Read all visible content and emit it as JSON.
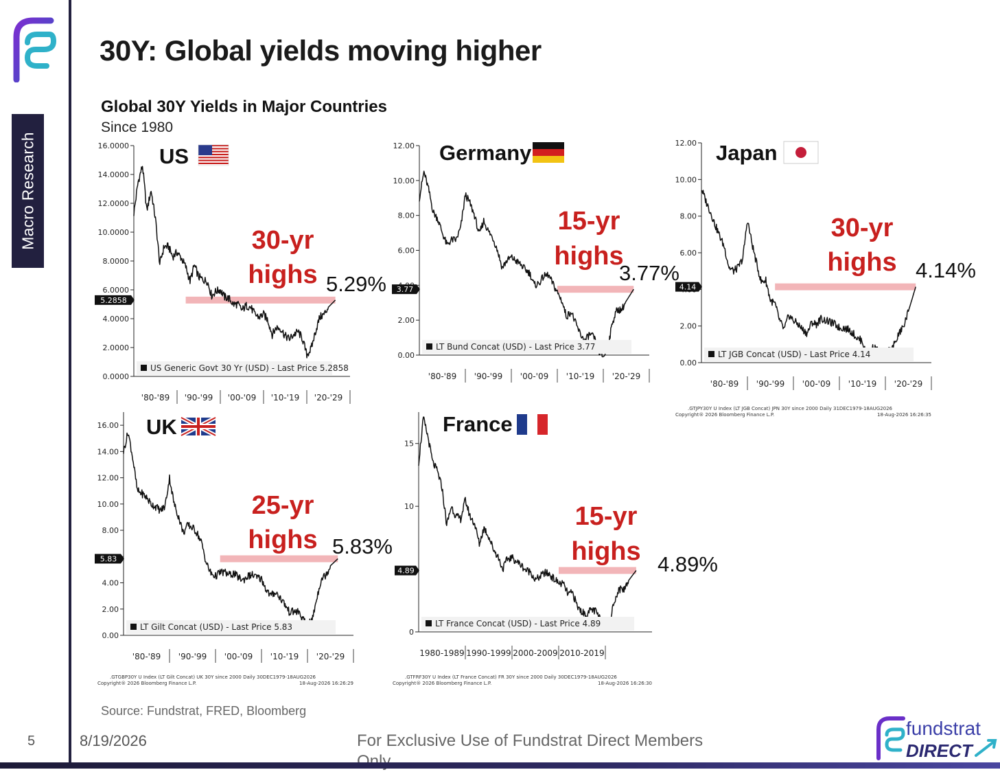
{
  "slide": {
    "title": "30Y: Global yields moving higher",
    "side_tag": "Macro Research",
    "page_number": "5",
    "date": "8/19/2026",
    "footer_notice": "For Exclusive Use of Fundstrat Direct Members Only",
    "source": "Source: Fundstrat, FRED, Bloomberg",
    "brand_top": "fundstrat",
    "brand_bottom": "DIRECT",
    "chart_title": "Global 30Y Yields in Major Countries",
    "chart_subtitle": "Since 1980",
    "colors": {
      "accent_red": "#c8201e",
      "highlight_band": "#f0a8ab",
      "navy": "#22203f",
      "logo_purple": "#5a2ea6"
    }
  },
  "chart_data": [
    {
      "type": "line",
      "country": "US",
      "flag": "us-flag-icon",
      "ylim": [
        0,
        16
      ],
      "yticks": [
        "0.0000",
        "2.0000",
        "4.0000",
        "6.0000",
        "8.0000",
        "10.0000",
        "12.0000",
        "14.0000",
        "16.0000"
      ],
      "xticks": [
        "'80-'89",
        "'90-'99",
        "'00-'09",
        "'10-'19",
        "'20-'29"
      ],
      "annotation_line1": "30-yr",
      "annotation_line2": "highs",
      "highlight_level": 5.29,
      "last_value_label": "5.2858",
      "last_value_pct": "5.29%",
      "legend": "US Generic Govt 30 Yr (USD) - Last Price 5.2858",
      "footnote": [],
      "x": [
        1980,
        1981,
        1982,
        1983,
        1984,
        1985,
        1986,
        1987,
        1988,
        1989,
        1990,
        1991,
        1992,
        1993,
        1994,
        1995,
        1996,
        1997,
        1998,
        1999,
        2000,
        2001,
        2002,
        2003,
        2004,
        2005,
        2006,
        2007,
        2008,
        2009,
        2010,
        2011,
        2012,
        2013,
        2014,
        2015,
        2016,
        2017,
        2018,
        2019,
        2020,
        2021,
        2022,
        2023,
        2024,
        2025,
        2026.6
      ],
      "values": [
        11.3,
        13.5,
        14.6,
        11.5,
        12.9,
        10.9,
        7.8,
        9.0,
        9.0,
        8.3,
        8.6,
        8.2,
        7.6,
        6.6,
        7.7,
        6.9,
        6.7,
        6.6,
        5.6,
        5.9,
        6.0,
        5.5,
        5.4,
        5.0,
        5.0,
        4.6,
        4.9,
        4.8,
        4.3,
        4.1,
        4.3,
        3.9,
        2.9,
        3.4,
        3.3,
        2.8,
        2.6,
        2.9,
        3.1,
        2.6,
        1.5,
        1.9,
        3.1,
        4.1,
        4.3,
        4.8,
        5.29
      ]
    },
    {
      "type": "line",
      "country": "Germany",
      "flag": "germany-flag-icon",
      "ylim": [
        0,
        12
      ],
      "yticks": [
        "0.00",
        "2.00",
        "4.00",
        "6.00",
        "8.00",
        "10.00",
        "12.00"
      ],
      "xticks": [
        "'80-'89",
        "'90-'99",
        "'00-'09",
        "'10-'19",
        "'20-'29"
      ],
      "annotation_line1": "15-yr",
      "annotation_line2": "highs",
      "highlight_level": 3.77,
      "last_value_label": "3.77",
      "last_value_pct": "3.77%",
      "legend": "LT Bund Concat (USD) - Last Price 3.77",
      "footnote": [],
      "x": [
        1980,
        1981,
        1982,
        1983,
        1984,
        1985,
        1986,
        1987,
        1988,
        1989,
        1990,
        1991,
        1992,
        1993,
        1994,
        1995,
        1996,
        1997,
        1998,
        1999,
        2000,
        2001,
        2002,
        2003,
        2004,
        2005,
        2006,
        2007,
        2008,
        2009,
        2010,
        2011,
        2012,
        2013,
        2014,
        2015,
        2016,
        2017,
        2018,
        2019,
        2020,
        2021,
        2022,
        2023,
        2024,
        2025,
        2026.6
      ],
      "values": [
        9.0,
        10.5,
        9.5,
        8.2,
        7.8,
        7.0,
        6.3,
        6.6,
        6.6,
        7.3,
        9.2,
        8.7,
        8.0,
        6.9,
        7.7,
        7.1,
        6.7,
        6.0,
        5.0,
        5.4,
        5.6,
        5.4,
        5.2,
        4.9,
        4.7,
        4.0,
        4.1,
        4.5,
        4.6,
        4.1,
        3.6,
        3.1,
        2.2,
        2.5,
        1.8,
        1.2,
        0.8,
        1.2,
        1.0,
        0.2,
        -0.1,
        0.4,
        1.9,
        2.6,
        2.6,
        3.1,
        3.77
      ]
    },
    {
      "type": "line",
      "country": "Japan",
      "flag": "japan-flag-icon",
      "ylim": [
        0,
        12
      ],
      "yticks": [
        "0.00",
        "2.00",
        "4.00",
        "6.00",
        "8.00",
        "10.00",
        "12.00"
      ],
      "xticks": [
        "'80-'89",
        "'90-'99",
        "'00-'09",
        "'10-'19",
        "'20-'29"
      ],
      "annotation_line1": "30-yr",
      "annotation_line2": "highs",
      "highlight_level": 4.14,
      "last_value_label": "4.14",
      "last_value_pct": "4.14%",
      "legend": "LT JGB Concat (USD) - Last Price 4.14",
      "footnote": [
        ".GTJPY30Y U Index (LT JGB Concat) JPN 30Y since 2000 Daily 31DEC1979-18AUG2026",
        "Copyright® 2026 Bloomberg Finance L.P.",
        "18-Aug-2026 16:26:35"
      ],
      "x": [
        1980,
        1981,
        1982,
        1983,
        1984,
        1985,
        1986,
        1987,
        1988,
        1989,
        1990,
        1991,
        1992,
        1993,
        1994,
        1995,
        1996,
        1997,
        1998,
        1999,
        2000,
        2001,
        2002,
        2003,
        2004,
        2005,
        2006,
        2007,
        2008,
        2009,
        2010,
        2011,
        2012,
        2013,
        2014,
        2015,
        2016,
        2017,
        2018,
        2019,
        2020,
        2021,
        2022,
        2023,
        2024,
        2025,
        2026.6
      ],
      "values": [
        9.5,
        8.8,
        8.2,
        7.5,
        6.9,
        6.3,
        5.2,
        5.0,
        5.2,
        5.7,
        7.8,
        6.5,
        5.4,
        4.4,
        4.5,
        3.4,
        3.2,
        2.3,
        1.8,
        2.6,
        2.3,
        2.1,
        1.8,
        1.6,
        2.2,
        2.1,
        2.4,
        2.3,
        2.2,
        2.1,
        1.9,
        1.9,
        1.8,
        1.6,
        1.3,
        1.2,
        0.2,
        0.8,
        0.8,
        0.3,
        0.6,
        0.7,
        1.0,
        1.6,
        2.0,
        2.8,
        4.14
      ]
    },
    {
      "type": "line",
      "country": "UK",
      "flag": "uk-flag-icon",
      "ylim": [
        0,
        17
      ],
      "yticks": [
        "0.00",
        "2.00",
        "4.00",
        "6.00",
        "8.00",
        "10.00",
        "12.00",
        "14.00",
        "16.00"
      ],
      "xticks": [
        "'80-'89",
        "'90-'99",
        "'00-'09",
        "'10-'19",
        "'20-'29"
      ],
      "annotation_line1": "25-yr",
      "annotation_line2": "highs",
      "highlight_level": 5.83,
      "last_value_label": "5.83",
      "last_value_pct": "5.83%",
      "legend": "LT Gilt Concat (USD) - Last Price 5.83",
      "footnote": [
        ".GTGBP30Y U Index (LT Gilt Concat) UK 30Y since 2000 Daily 30DEC1979-18AUG2026",
        "Copyright® 2026 Bloomberg Finance L.P.",
        "18-Aug-2026 16:26:29"
      ],
      "x": [
        1980,
        1981,
        1982,
        1983,
        1984,
        1985,
        1986,
        1987,
        1988,
        1989,
        1990,
        1991,
        1992,
        1993,
        1994,
        1995,
        1996,
        1997,
        1998,
        1999,
        2000,
        2001,
        2002,
        2003,
        2004,
        2005,
        2006,
        2007,
        2008,
        2009,
        2010,
        2011,
        2012,
        2013,
        2014,
        2015,
        2016,
        2017,
        2018,
        2019,
        2020,
        2021,
        2022,
        2023,
        2024,
        2025,
        2026.6
      ],
      "values": [
        14.0,
        15.5,
        13.5,
        11.0,
        10.8,
        10.5,
        10.0,
        9.8,
        9.5,
        9.8,
        12.0,
        10.0,
        9.0,
        7.8,
        8.4,
        8.2,
        7.8,
        7.0,
        5.5,
        4.7,
        4.5,
        4.8,
        4.8,
        4.6,
        4.7,
        4.4,
        4.2,
        4.5,
        4.6,
        4.4,
        4.3,
        3.5,
        3.0,
        3.3,
        2.9,
        2.4,
        1.8,
        1.8,
        1.8,
        1.2,
        0.8,
        1.1,
        2.8,
        4.3,
        4.6,
        5.3,
        5.83
      ]
    },
    {
      "type": "line",
      "country": "France",
      "flag": "france-flag-icon",
      "ylim": [
        0,
        17.5
      ],
      "yticks": [
        "0",
        "5",
        "10",
        "15"
      ],
      "xticks": [
        "1980-1989",
        "1990-1999",
        "2000-2009",
        "2010-2019"
      ],
      "annotation_line1": "15-yr",
      "annotation_line2": "highs",
      "highlight_level": 4.89,
      "last_value_label": "4.89",
      "last_value_pct": "4.89%",
      "legend": "LT France Concat (USD) - Last Price 4.89",
      "footnote": [
        ".GTFRF30Y U Index (LT France Concat) FR 30Y since 2000 Daily 30DEC1979-18AUG2026",
        "Copyright® 2026 Bloomberg Finance L.P.",
        "18-Aug-2026 16:26:30"
      ],
      "x": [
        1980,
        1981,
        1982,
        1983,
        1984,
        1985,
        1986,
        1987,
        1988,
        1989,
        1990,
        1991,
        1992,
        1993,
        1994,
        1995,
        1996,
        1997,
        1998,
        1999,
        2000,
        2001,
        2002,
        2003,
        2004,
        2005,
        2006,
        2007,
        2008,
        2009,
        2010,
        2011,
        2012,
        2013,
        2014,
        2015,
        2016,
        2017,
        2018,
        2019,
        2020,
        2021,
        2022,
        2023,
        2024,
        2025,
        2026.6
      ],
      "values": [
        13.5,
        17.0,
        15.5,
        13.5,
        12.8,
        11.5,
        8.5,
        10.0,
        9.2,
        9.0,
        10.5,
        9.2,
        8.6,
        7.0,
        8.3,
        7.6,
        6.6,
        6.0,
        5.0,
        5.8,
        5.9,
        5.6,
        5.3,
        4.9,
        4.8,
        4.1,
        4.4,
        4.7,
        4.6,
        4.2,
        3.9,
        3.8,
        3.0,
        3.1,
        2.0,
        1.6,
        1.3,
        1.8,
        1.6,
        0.9,
        0.6,
        0.9,
        2.6,
        3.4,
        3.4,
        4.1,
        4.89
      ]
    }
  ]
}
